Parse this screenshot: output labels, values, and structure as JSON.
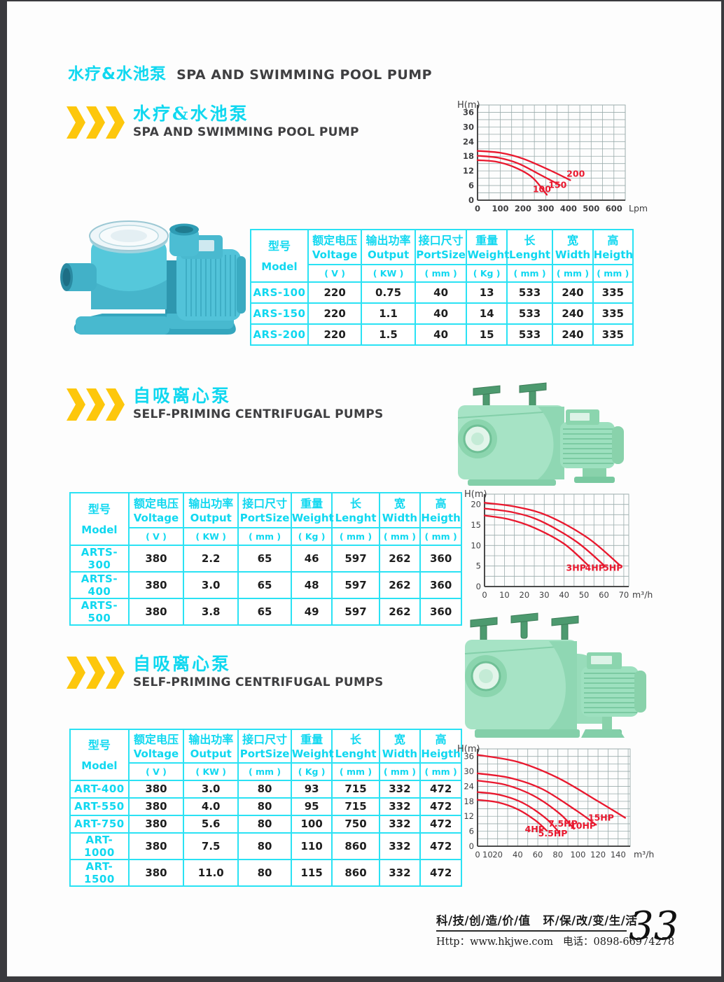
{
  "colors": {
    "accent_cyan": "#10d8f0",
    "table_border": "#2ae2f4",
    "accent_yellow": "#fdc70c",
    "curve_red": "#e9182e",
    "text_dark": "#3f3f41",
    "grid_gray": "#9aabab",
    "axis_gray": "#4a4a4a"
  },
  "page": {
    "header": {
      "title_zh": "水疗&水池泵",
      "title_en": "SPA AND SWIMMING POOL PUMP"
    },
    "footer": {
      "slogan_left": "科/技/创/造/价/值",
      "slogan_right": "环/保/改/变/生/活",
      "contact_http": "Http：www.hkjwe.com",
      "contact_tel": "电话：0898-66974278",
      "page_number": "33"
    }
  },
  "sections": [
    {
      "heading_zh": "水疗&水池泵",
      "heading_en": "SPA AND SWIMMING POOL PUMP"
    },
    {
      "heading_zh": "自吸离心泵",
      "heading_en": "SELF-PRIMING CENTRIFUGAL PUMPS"
    },
    {
      "heading_zh": "自吸离心泵",
      "heading_en": "SELF-PRIMING CENTRIFUGAL PUMPS"
    }
  ],
  "table_columns": [
    {
      "zh": "型号",
      "en": "Model",
      "unit": ""
    },
    {
      "zh": "额定电压",
      "en": "Voltage",
      "unit": "( V )"
    },
    {
      "zh": "输出功率",
      "en": "Output",
      "unit": "( KW )"
    },
    {
      "zh": "接口尺寸",
      "en": "PortSize",
      "unit": "( mm )"
    },
    {
      "zh": "重量",
      "en": "Weight",
      "unit": "( Kg )"
    },
    {
      "zh": "长",
      "en": "Lenght",
      "unit": "( mm )"
    },
    {
      "zh": "宽",
      "en": "Width",
      "unit": "( mm )"
    },
    {
      "zh": "高",
      "en": "Heigth",
      "unit": "( mm )"
    }
  ],
  "tables": [
    {
      "rows": [
        [
          "ARS-100",
          "220",
          "0.75",
          "40",
          "13",
          "533",
          "240",
          "335"
        ],
        [
          "ARS-150",
          "220",
          "1.1",
          "40",
          "14",
          "533",
          "240",
          "335"
        ],
        [
          "ARS-200",
          "220",
          "1.5",
          "40",
          "15",
          "533",
          "240",
          "335"
        ]
      ]
    },
    {
      "rows": [
        [
          "ARTS-300",
          "380",
          "2.2",
          "65",
          "46",
          "597",
          "262",
          "360"
        ],
        [
          "ARTS-400",
          "380",
          "3.0",
          "65",
          "48",
          "597",
          "262",
          "360"
        ],
        [
          "ARTS-500",
          "380",
          "3.8",
          "65",
          "49",
          "597",
          "262",
          "360"
        ]
      ]
    },
    {
      "rows": [
        [
          "ART-400",
          "380",
          "3.0",
          "80",
          "93",
          "715",
          "332",
          "472"
        ],
        [
          "ART-550",
          "380",
          "4.0",
          "80",
          "95",
          "715",
          "332",
          "472"
        ],
        [
          "ART-750",
          "380",
          "5.6",
          "80",
          "100",
          "750",
          "332",
          "472"
        ],
        [
          "ART-1000",
          "380",
          "7.5",
          "80",
          "110",
          "860",
          "332",
          "472"
        ],
        [
          "ART-1500",
          "380",
          "11.0",
          "80",
          "115",
          "860",
          "332",
          "472"
        ]
      ]
    }
  ],
  "chart_data": [
    {
      "type": "line",
      "title": "",
      "ylabel": "H(m)",
      "xunit": "Lpm",
      "xlim": [
        0,
        650
      ],
      "ylim": [
        0,
        39
      ],
      "x_ticks": [
        0,
        100,
        200,
        300,
        400,
        500,
        600
      ],
      "y_ticks": [
        0,
        6,
        12,
        18,
        24,
        30,
        36
      ],
      "x_grid_step": 50,
      "y_grid_step": 3,
      "grid": true,
      "legend": "inline-labels",
      "bold_ticks": true,
      "series": [
        {
          "name": "100",
          "points": [
            [
              0,
              16.4
            ],
            [
              80,
              15.8
            ],
            [
              160,
              13.6
            ],
            [
              240,
              9.4
            ],
            [
              305,
              2.2
            ]
          ],
          "label_at": [
            283,
            3.3
          ]
        },
        {
          "name": "150",
          "points": [
            [
              0,
              18.2
            ],
            [
              90,
              17.4
            ],
            [
              180,
              15.0
            ],
            [
              280,
              10.2
            ],
            [
              362,
              6.2
            ]
          ],
          "label_at": [
            352,
            5.0
          ]
        },
        {
          "name": "200",
          "points": [
            [
              0,
              20.2
            ],
            [
              100,
              19.4
            ],
            [
              200,
              17.0
            ],
            [
              320,
              12.2
            ],
            [
              408,
              8.2
            ]
          ],
          "label_at": [
            432,
            9.6
          ]
        }
      ]
    },
    {
      "type": "line",
      "title": "",
      "ylabel": "H(m)",
      "xunit": "m³/h",
      "xlim": [
        0,
        72.5
      ],
      "ylim": [
        0,
        22.5
      ],
      "x_ticks": [
        0,
        10,
        20,
        30,
        40,
        50,
        60,
        70
      ],
      "y_ticks": [
        0,
        5,
        10,
        15,
        20
      ],
      "x_grid_step": 5,
      "y_grid_step": 2.5,
      "grid": true,
      "legend": "inline-labels",
      "bold_ticks": false,
      "series": [
        {
          "name": "3HP",
          "points": [
            [
              0,
              17.3
            ],
            [
              12,
              16.4
            ],
            [
              25,
              14.3
            ],
            [
              40,
              10.4
            ],
            [
              52,
              5.2
            ]
          ],
          "label_at": [
            46,
            3.8
          ]
        },
        {
          "name": "4HP",
          "points": [
            [
              0,
              19.0
            ],
            [
              14,
              18.1
            ],
            [
              28,
              16.0
            ],
            [
              46,
              11.0
            ],
            [
              60,
              5.2
            ]
          ],
          "label_at": [
            55.5,
            3.8
          ]
        },
        {
          "name": "5HP",
          "points": [
            [
              0,
              20.4
            ],
            [
              16,
              19.4
            ],
            [
              32,
              17.2
            ],
            [
              52,
              11.8
            ],
            [
              68,
              5.2
            ]
          ],
          "label_at": [
            64.5,
            3.8
          ]
        }
      ]
    },
    {
      "type": "line",
      "title": "",
      "ylabel": "H(m)",
      "xunit": "m³/h",
      "xlim": [
        0,
        152
      ],
      "ylim": [
        0,
        39
      ],
      "x_ticks": [
        0,
        10,
        20,
        40,
        60,
        80,
        100,
        120,
        140
      ],
      "y_ticks": [
        0,
        6,
        12,
        18,
        24,
        30,
        36
      ],
      "x_grid_step": 10,
      "y_grid_step": 3,
      "grid": true,
      "legend": "inline-labels",
      "bold_ticks": false,
      "series": [
        {
          "name": "4HP",
          "points": [
            [
              0,
              18.6
            ],
            [
              20,
              17.6
            ],
            [
              40,
              14.8
            ],
            [
              58,
              10.2
            ],
            [
              69,
              6.2
            ]
          ],
          "label_at": [
            57,
            5.6
          ]
        },
        {
          "name": "5.5HP",
          "points": [
            [
              0,
              21.7
            ],
            [
              22,
              20.6
            ],
            [
              45,
              17.4
            ],
            [
              68,
              11.2
            ],
            [
              81,
              5.6
            ]
          ],
          "label_at": [
            75,
            3.9
          ]
        },
        {
          "name": "7.5HP",
          "points": [
            [
              0,
              26.3
            ],
            [
              28,
              24.6
            ],
            [
              56,
              20.2
            ],
            [
              82,
              13.0
            ],
            [
              96,
              7.0
            ]
          ],
          "label_at": [
            85,
            7.8
          ]
        },
        {
          "name": "10HP",
          "points": [
            [
              0,
              29.2
            ],
            [
              32,
              27.4
            ],
            [
              64,
              23.0
            ],
            [
              98,
              14.4
            ],
            [
              118,
              8.6
            ]
          ],
          "label_at": [
            105,
            7.0
          ]
        },
        {
          "name": "15HP",
          "points": [
            [
              0,
              36.6
            ],
            [
              40,
              33.8
            ],
            [
              80,
              27.4
            ],
            [
              120,
              18.0
            ],
            [
              147,
              11.4
            ]
          ],
          "label_at": [
            123,
            10.2
          ]
        }
      ]
    }
  ]
}
